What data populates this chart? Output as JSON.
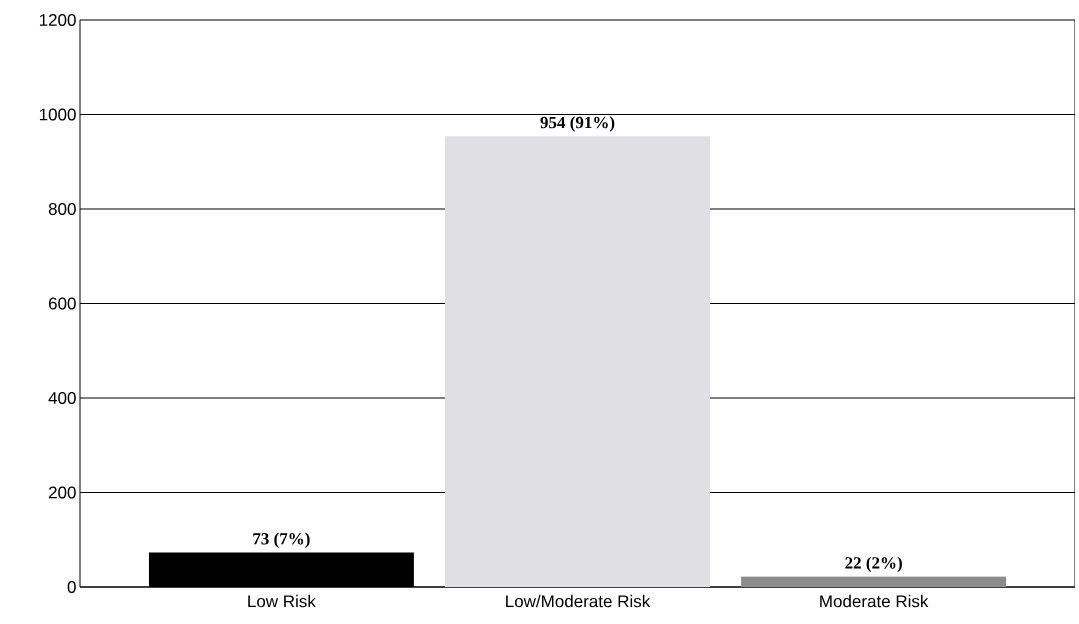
{
  "chart_data": {
    "type": "bar",
    "categories": [
      "Low Risk",
      "Low/Moderate Risk",
      "Moderate Risk"
    ],
    "values": [
      73,
      954,
      22
    ],
    "colors": [
      "#000000",
      "#e0e0e2",
      "#8c8c8c"
    ],
    "value_labels": [
      "73 (7%)",
      "954 (91%)",
      "22 (2%)"
    ],
    "ylim": [
      0,
      1200
    ],
    "yticks": [
      0,
      200,
      400,
      600,
      800,
      1000,
      1200
    ],
    "grid": "y"
  }
}
